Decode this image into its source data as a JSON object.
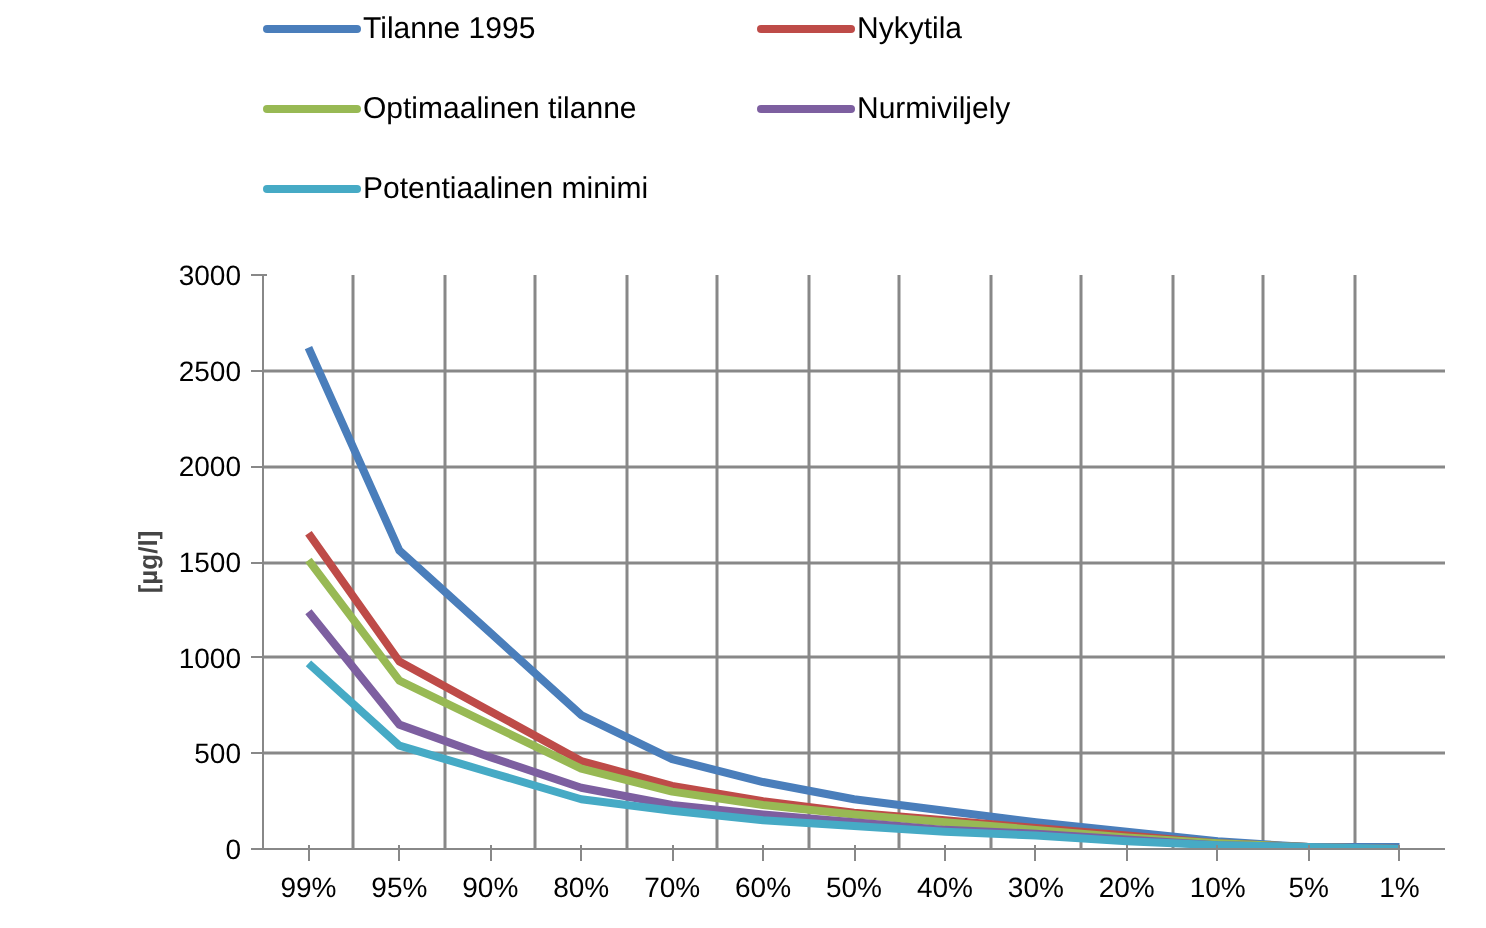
{
  "chart_data": {
    "type": "line",
    "ylabel": "[µg/l]",
    "categories": [
      "99%",
      "95%",
      "90%",
      "80%",
      "70%",
      "60%",
      "50%",
      "40%",
      "30%",
      "20%",
      "10%",
      "5%",
      "1%"
    ],
    "series": [
      {
        "name": "Tilanne 1995",
        "color": "#4a7ebb",
        "values": [
          2620,
          1560,
          1130,
          700,
          470,
          350,
          260,
          200,
          140,
          90,
          40,
          10,
          10
        ]
      },
      {
        "name": "Nykytila",
        "color": "#be4b48",
        "values": [
          1650,
          980,
          720,
          460,
          330,
          250,
          190,
          150,
          110,
          70,
          30,
          10,
          0
        ]
      },
      {
        "name": "Optimaalinen tilanne",
        "color": "#98b954",
        "values": [
          1510,
          880,
          650,
          420,
          300,
          230,
          180,
          140,
          100,
          60,
          30,
          10,
          0
        ]
      },
      {
        "name": "Nurmiviljely",
        "color": "#7d5fa0",
        "values": [
          1240,
          650,
          480,
          320,
          230,
          180,
          140,
          100,
          80,
          50,
          20,
          10,
          0
        ]
      },
      {
        "name": "Potentiaalinen minimi",
        "color": "#46aac5",
        "values": [
          970,
          540,
          400,
          260,
          200,
          150,
          120,
          90,
          70,
          40,
          20,
          10,
          0
        ]
      }
    ],
    "ylim": [
      0,
      3000
    ],
    "yticks": [
      0,
      500,
      1000,
      1500,
      2000,
      2500,
      3000
    ],
    "grid": true,
    "legend": "top",
    "marker": "none",
    "line_style": "solid"
  }
}
